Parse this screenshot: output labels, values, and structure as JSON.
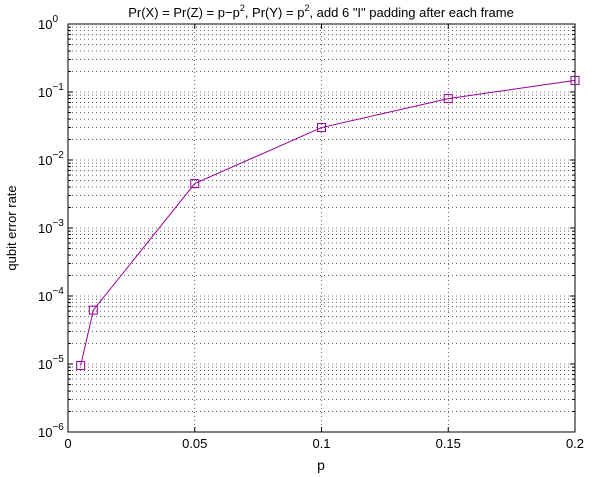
{
  "chart_data": {
    "type": "line",
    "title": {
      "parts": [
        {
          "text": "Pr(X) = Pr(Z) = p−p"
        },
        {
          "text": "2",
          "sup": true
        },
        {
          "text": ", Pr(Y) = p"
        },
        {
          "text": "2",
          "sup": true
        },
        {
          "text": ", add 6 \"I\" padding after each frame"
        }
      ]
    },
    "xlabel": "p",
    "ylabel": "qubit error rate",
    "xlim": [
      0,
      0.2
    ],
    "ylim": [
      1e-06,
      1
    ],
    "yscale": "log",
    "grid": true,
    "x_ticks": [
      {
        "value": 0,
        "label": "0"
      },
      {
        "value": 0.05,
        "label": "0.05"
      },
      {
        "value": 0.1,
        "label": "0.1"
      },
      {
        "value": 0.15,
        "label": "0.15"
      },
      {
        "value": 0.2,
        "label": "0.2"
      }
    ],
    "y_ticks": [
      {
        "exp": -6,
        "base": "10",
        "sup": "−6"
      },
      {
        "exp": -5,
        "base": "10",
        "sup": "−5"
      },
      {
        "exp": -4,
        "base": "10",
        "sup": "−4"
      },
      {
        "exp": -3,
        "base": "10",
        "sup": "−3"
      },
      {
        "exp": -2,
        "base": "10",
        "sup": "−2"
      },
      {
        "exp": -1,
        "base": "10",
        "sup": "−1"
      },
      {
        "exp": 0,
        "base": "10",
        "sup": "0"
      }
    ],
    "series": [
      {
        "color": "#990099",
        "marker": "square",
        "x": [
          0.005,
          0.01,
          0.05,
          0.1,
          0.15,
          0.2
        ],
        "y": [
          9.5e-06,
          6.2e-05,
          0.0045,
          0.03,
          0.08,
          0.148
        ]
      }
    ]
  }
}
